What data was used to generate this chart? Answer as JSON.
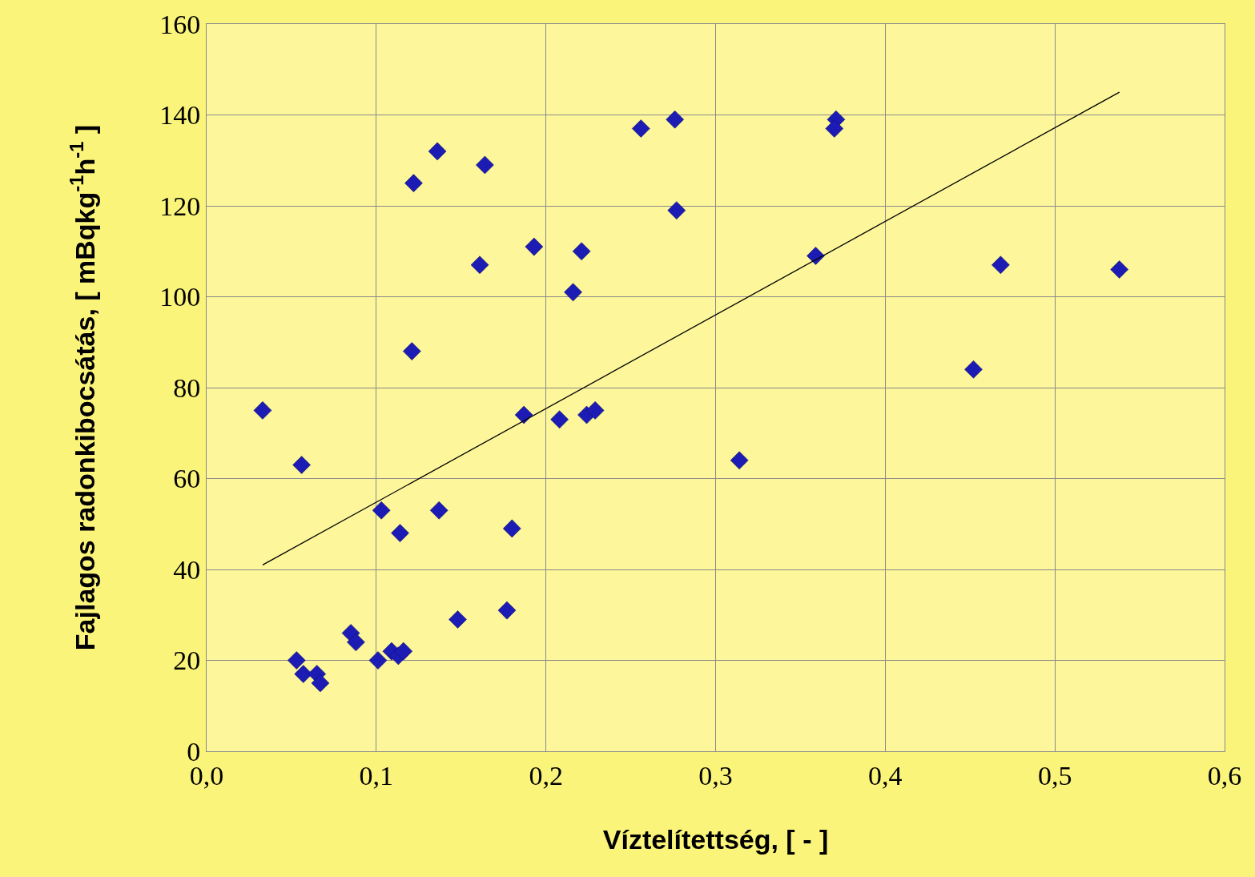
{
  "chart_data": {
    "type": "scatter",
    "xlabel": "Víztelítettség, [ - ]",
    "ylabel": "Fajlagos radonkibocsátás, [ mBqkg$^{-1}$h$^{-1}$ ]",
    "series": [
      {
        "color": "#1c1cb4",
        "marker": "diamond",
        "x": [
          0.033,
          0.056,
          0.053,
          0.057,
          0.065,
          0.067,
          0.085,
          0.088,
          0.101,
          0.103,
          0.109,
          0.113,
          0.116,
          0.114,
          0.121,
          0.122,
          0.136,
          0.137,
          0.148,
          0.161,
          0.164,
          0.177,
          0.18,
          0.187,
          0.193,
          0.208,
          0.216,
          0.221,
          0.224,
          0.229,
          0.256,
          0.276,
          0.277,
          0.314,
          0.359,
          0.371,
          0.37,
          0.452,
          0.468,
          0.538
        ],
        "values": [
          75,
          63,
          20,
          17,
          17,
          15,
          26,
          24,
          20,
          53,
          22,
          21,
          22,
          48,
          88,
          125,
          132,
          53,
          29,
          107,
          129,
          31,
          49,
          74,
          111,
          73,
          101,
          110,
          74,
          75,
          137,
          139,
          119,
          64,
          109,
          139,
          137,
          84,
          107,
          106
        ]
      },
      {
        "type": "line",
        "color": "#000000",
        "marker": "none",
        "line_style": "solid",
        "x": [
          0.033,
          0.538
        ],
        "values": [
          41,
          145
        ]
      }
    ],
    "xlim": [
      0,
      0.6
    ],
    "xticks": [
      {
        "value": 0,
        "label": "0,0"
      },
      {
        "value": 0.1,
        "label": "0,1"
      },
      {
        "value": 0.2,
        "label": "0,2"
      },
      {
        "value": 0.3,
        "label": "0,3"
      },
      {
        "value": 0.4,
        "label": "0,4"
      },
      {
        "value": 0.5,
        "label": "0,5"
      },
      {
        "value": 0.6,
        "label": "0,6"
      }
    ],
    "ylim": [
      0,
      160
    ],
    "yticks": [
      0,
      20,
      40,
      60,
      80,
      100,
      120,
      140,
      160
    ],
    "grid": true,
    "legend": false
  }
}
